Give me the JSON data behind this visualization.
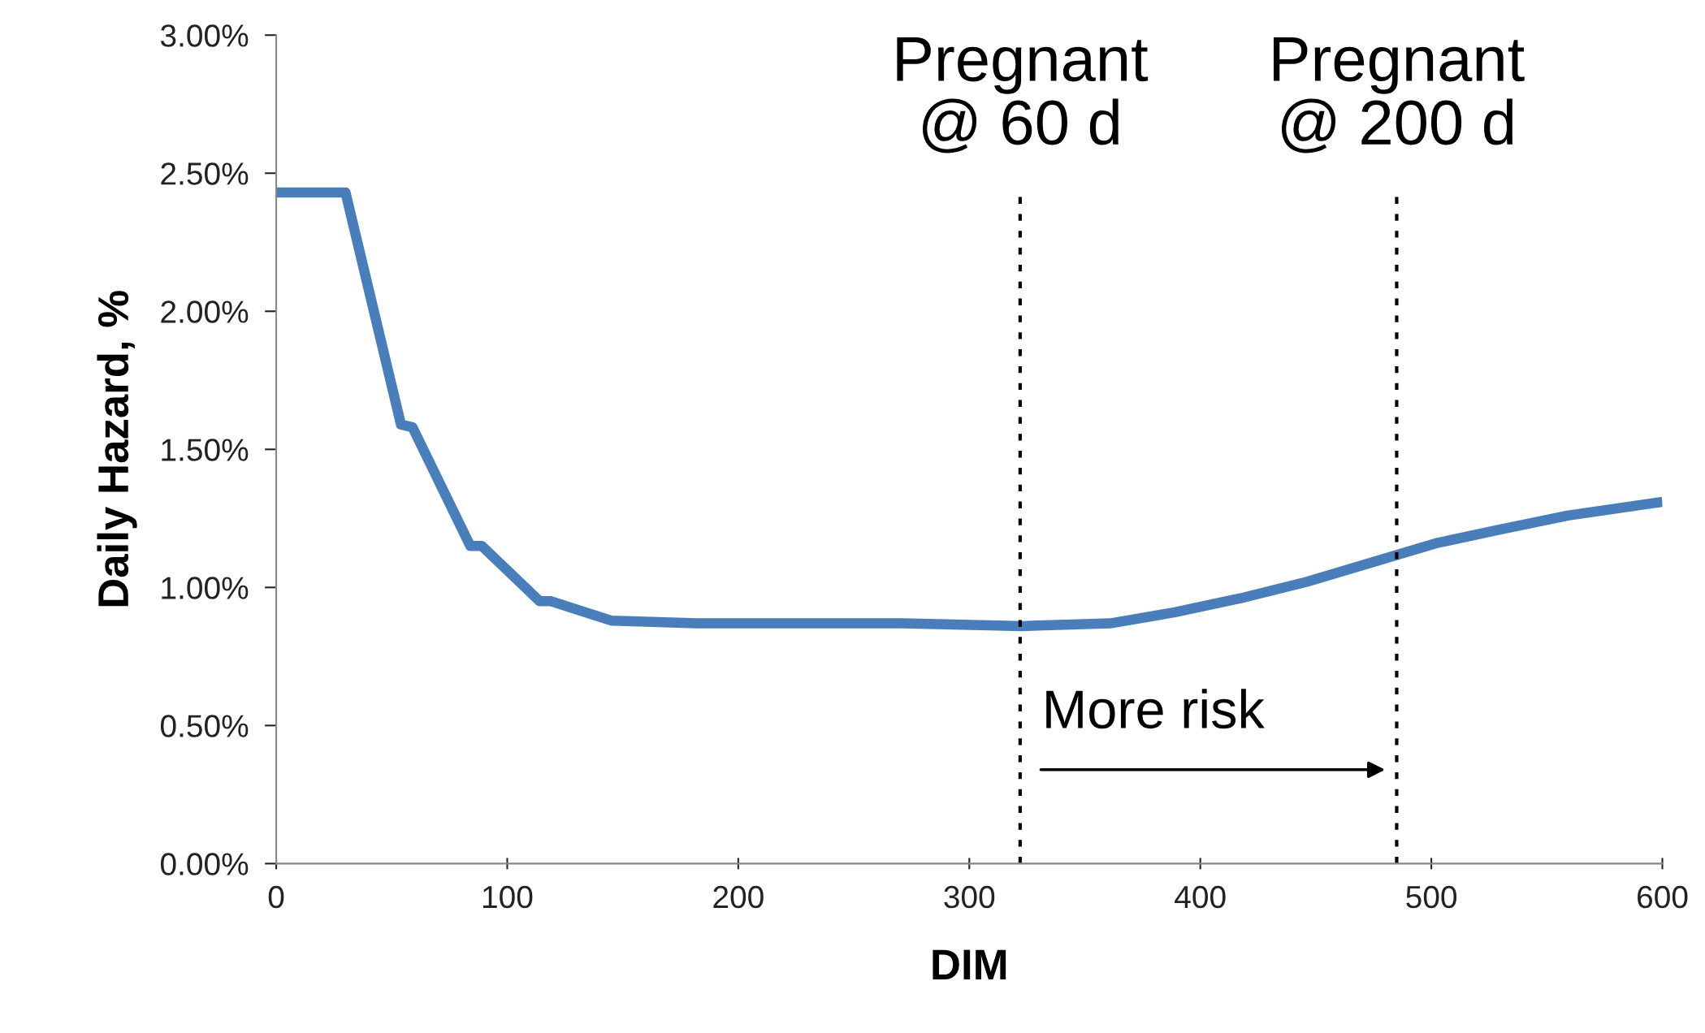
{
  "chart_data": {
    "type": "line",
    "xlabel": "DIM",
    "ylabel": "Daily Hazard, %",
    "x": [
      0,
      30,
      54,
      59,
      84,
      89,
      114,
      119,
      145,
      182,
      271,
      323,
      361,
      389,
      417,
      446,
      474,
      502,
      530,
      559,
      600
    ],
    "series": [
      {
        "color": "#4a7ebb",
        "values": [
          2.43,
          2.43,
          1.59,
          1.58,
          1.15,
          1.15,
          0.95,
          0.95,
          0.88,
          0.87,
          0.87,
          0.86,
          0.87,
          0.91,
          0.96,
          1.02,
          1.09,
          1.16,
          1.21,
          1.26,
          1.31
        ]
      }
    ],
    "xlim": [
      0,
      600
    ],
    "xticks": [
      0,
      100,
      200,
      300,
      400,
      500,
      600
    ],
    "ylim": [
      0,
      3
    ],
    "yticks": [
      {
        "value": 0,
        "label": "0.00%"
      },
      {
        "value": 0.5,
        "label": "0.50%"
      },
      {
        "value": 1,
        "label": "1.00%"
      },
      {
        "value": 1.5,
        "label": "1.50%"
      },
      {
        "value": 2,
        "label": "2.00%"
      },
      {
        "value": 2.5,
        "label": "2.50%"
      },
      {
        "value": 3,
        "label": "3.00%"
      }
    ],
    "ref_lines": [
      {
        "axis": "x",
        "value": 322,
        "label": "Pregnant\n@ 60 d",
        "color": "#000000",
        "line_style": "dotted"
      },
      {
        "axis": "x",
        "value": 485,
        "label": "Pregnant\n@ 200 d",
        "color": "#000000",
        "line_style": "dotted"
      }
    ],
    "annotations": [
      "More risk"
    ],
    "grid": false,
    "legend": false,
    "marker": "none",
    "line_style": "solid"
  }
}
